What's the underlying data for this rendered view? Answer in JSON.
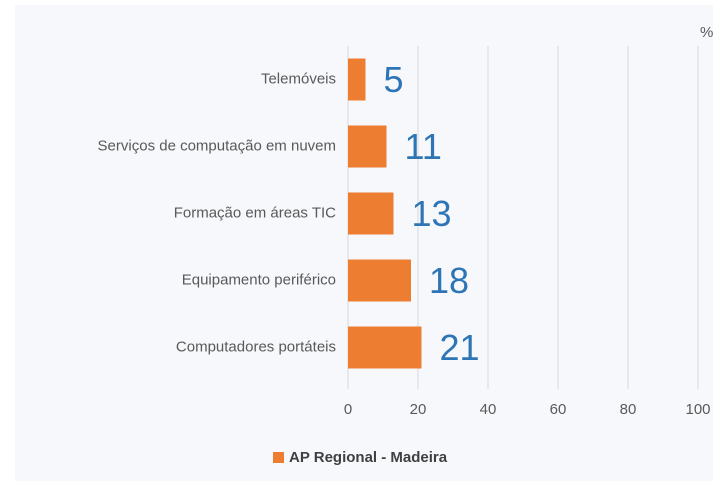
{
  "chart_data": {
    "type": "barh",
    "unit_label": "%",
    "categories": [
      "Telemóveis",
      "Serviços de computação em nuvem",
      "Formação em áreas TIC",
      "Equipamento periférico",
      "Computadores portáteis"
    ],
    "series": [
      {
        "name": "AP Regional - Madeira",
        "color": "#ed7d31",
        "values": [
          5,
          11,
          13,
          18,
          21
        ]
      }
    ],
    "xlim": [
      0,
      100
    ],
    "xticks": [
      0,
      20,
      40,
      60,
      80,
      100
    ],
    "grid": true,
    "legend": "bottom"
  }
}
